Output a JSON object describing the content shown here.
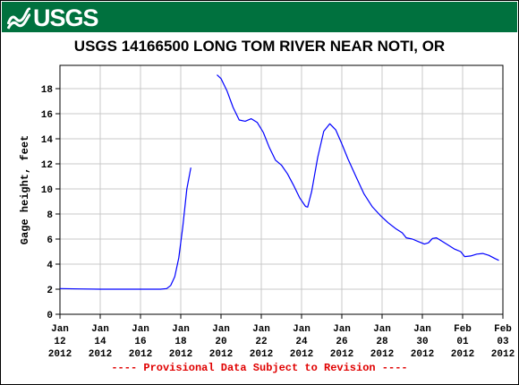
{
  "header": {
    "logo_text": "USGS",
    "brand_color": "#00713e"
  },
  "chart_data": {
    "type": "line",
    "title": "USGS 14166500 LONG TOM RIVER NEAR NOTI, OR",
    "ylabel": "Gage height, feet",
    "xlabel": "",
    "ylim": [
      0,
      19
    ],
    "yticks": [
      0,
      2,
      4,
      6,
      8,
      10,
      12,
      14,
      16,
      18
    ],
    "xlim_days": [
      0,
      22
    ],
    "xticks": [
      {
        "day": 0,
        "label": [
          "Jan",
          "12",
          "2012"
        ]
      },
      {
        "day": 2,
        "label": [
          "Jan",
          "14",
          "2012"
        ]
      },
      {
        "day": 4,
        "label": [
          "Jan",
          "16",
          "2012"
        ]
      },
      {
        "day": 6,
        "label": [
          "Jan",
          "18",
          "2012"
        ]
      },
      {
        "day": 8,
        "label": [
          "Jan",
          "20",
          "2012"
        ]
      },
      {
        "day": 10,
        "label": [
          "Jan",
          "22",
          "2012"
        ]
      },
      {
        "day": 12,
        "label": [
          "Jan",
          "24",
          "2012"
        ]
      },
      {
        "day": 14,
        "label": [
          "Jan",
          "26",
          "2012"
        ]
      },
      {
        "day": 16,
        "label": [
          "Jan",
          "28",
          "2012"
        ]
      },
      {
        "day": 18,
        "label": [
          "Jan",
          "30",
          "2012"
        ]
      },
      {
        "day": 20,
        "label": [
          "Feb",
          "01",
          "2012"
        ]
      },
      {
        "day": 22,
        "label": [
          "Feb",
          "03",
          "2012"
        ]
      }
    ],
    "grid": true,
    "line_color": "#0000ff",
    "series": [
      {
        "segments": [
          [
            [
              0.0,
              2.05
            ],
            [
              1.0,
              2.02
            ],
            [
              2.0,
              2.0
            ],
            [
              3.0,
              2.0
            ],
            [
              4.0,
              2.0
            ],
            [
              5.0,
              2.0
            ],
            [
              5.3,
              2.05
            ],
            [
              5.5,
              2.3
            ],
            [
              5.7,
              3.0
            ],
            [
              5.9,
              4.5
            ],
            [
              6.1,
              7.0
            ],
            [
              6.3,
              10.0
            ],
            [
              6.5,
              11.7
            ]
          ],
          [
            [
              7.8,
              19.1
            ],
            [
              8.0,
              18.8
            ],
            [
              8.3,
              17.8
            ],
            [
              8.6,
              16.5
            ],
            [
              8.9,
              15.5
            ],
            [
              9.2,
              15.4
            ],
            [
              9.5,
              15.6
            ],
            [
              9.8,
              15.3
            ],
            [
              10.1,
              14.5
            ],
            [
              10.4,
              13.3
            ],
            [
              10.7,
              12.3
            ],
            [
              11.0,
              11.9
            ],
            [
              11.3,
              11.2
            ],
            [
              11.6,
              10.3
            ],
            [
              11.9,
              9.3
            ],
            [
              12.2,
              8.6
            ],
            [
              12.3,
              8.55
            ],
            [
              12.5,
              9.8
            ],
            [
              12.8,
              12.5
            ],
            [
              13.1,
              14.6
            ],
            [
              13.4,
              15.2
            ],
            [
              13.7,
              14.7
            ],
            [
              14.0,
              13.6
            ],
            [
              14.3,
              12.4
            ],
            [
              14.7,
              11.0
            ],
            [
              15.1,
              9.6
            ],
            [
              15.5,
              8.6
            ],
            [
              15.9,
              7.9
            ],
            [
              16.3,
              7.3
            ],
            [
              16.7,
              6.8
            ],
            [
              17.0,
              6.5
            ],
            [
              17.2,
              6.1
            ],
            [
              17.5,
              6.0
            ],
            [
              17.8,
              5.8
            ],
            [
              18.1,
              5.6
            ],
            [
              18.3,
              5.7
            ],
            [
              18.5,
              6.05
            ],
            [
              18.7,
              6.1
            ],
            [
              19.0,
              5.8
            ],
            [
              19.3,
              5.5
            ],
            [
              19.6,
              5.2
            ],
            [
              19.9,
              5.0
            ],
            [
              20.1,
              4.6
            ],
            [
              20.4,
              4.65
            ],
            [
              20.7,
              4.8
            ],
            [
              21.0,
              4.85
            ],
            [
              21.3,
              4.7
            ],
            [
              21.6,
              4.45
            ],
            [
              21.8,
              4.3
            ]
          ]
        ]
      }
    ]
  },
  "footnote": "---- Provisional Data Subject to Revision ----"
}
